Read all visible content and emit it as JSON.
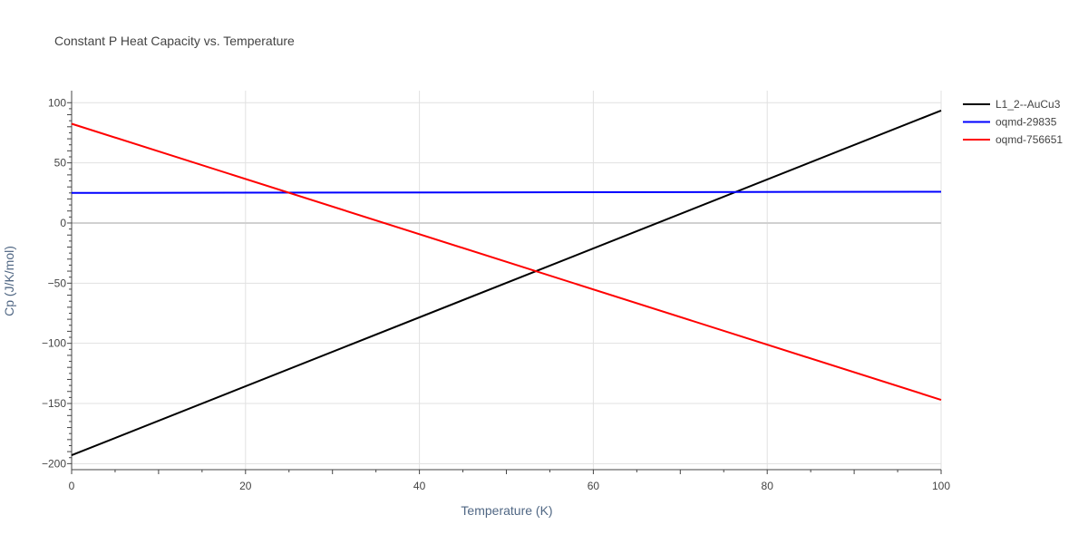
{
  "chart_data": {
    "type": "line",
    "title": "Constant P Heat Capacity vs. Temperature",
    "xlabel": "Temperature (K)",
    "ylabel": "Cp (J/K/mol)",
    "xlim": [
      0,
      100
    ],
    "ylim": [
      -205,
      110
    ],
    "xticks": [
      0,
      20,
      40,
      60,
      80,
      100
    ],
    "yticks": [
      100,
      50,
      0,
      -50,
      -100,
      -150,
      -200
    ],
    "xtick_labels": [
      "0",
      "20",
      "40",
      "60",
      "80",
      "100"
    ],
    "ytick_labels": [
      "100",
      "50",
      "0",
      "−50",
      "−100",
      "−150",
      "−200"
    ],
    "grid": true,
    "legend_position": "top-right",
    "series": [
      {
        "name": "L1_2--AuCu3",
        "color": "#000000",
        "x": [
          0,
          100
        ],
        "y": [
          -193,
          93.5
        ]
      },
      {
        "name": "oqmd-29835",
        "color": "#0000ff",
        "x": [
          0,
          100
        ],
        "y": [
          25,
          26
        ]
      },
      {
        "name": "oqmd-756651",
        "color": "#ff0000",
        "x": [
          0,
          100
        ],
        "y": [
          82.5,
          -147
        ]
      }
    ]
  }
}
